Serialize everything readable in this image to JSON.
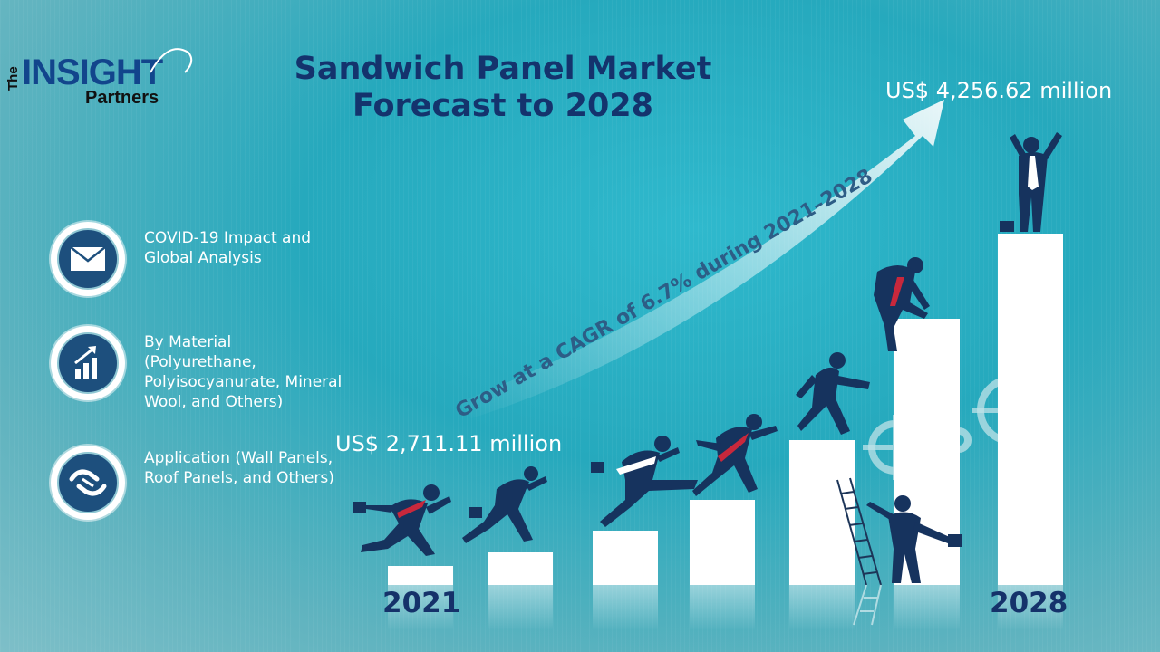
{
  "logo": {
    "the": "The",
    "insight": "INSIGHT",
    "partners": "Partners"
  },
  "title": {
    "line1": "Sandwich Panel Market",
    "line2": "Forecast to 2028"
  },
  "features": [
    {
      "label": "COVID-19 Impact and Global Analysis",
      "icon": "envelope-icon"
    },
    {
      "label": "By Material (Polyurethane, Polyisocyanurate, Mineral Wool, and Others)",
      "icon": "growth-chart-icon"
    },
    {
      "label": "Application (Wall Panels, Roof Panels, and Others)",
      "icon": "handshake-icon"
    }
  ],
  "market": {
    "start_value": "US$ 2,711.11 million",
    "end_value": "US$ 4,256.62 million",
    "cagr_text": "Grow at a CAGR of 6.7% during 2021–2028",
    "start_year": "2021",
    "end_year": "2028"
  },
  "colors": {
    "navy": "#14336d",
    "accent_red": "#c8283c",
    "background": "#2ab0c4"
  }
}
